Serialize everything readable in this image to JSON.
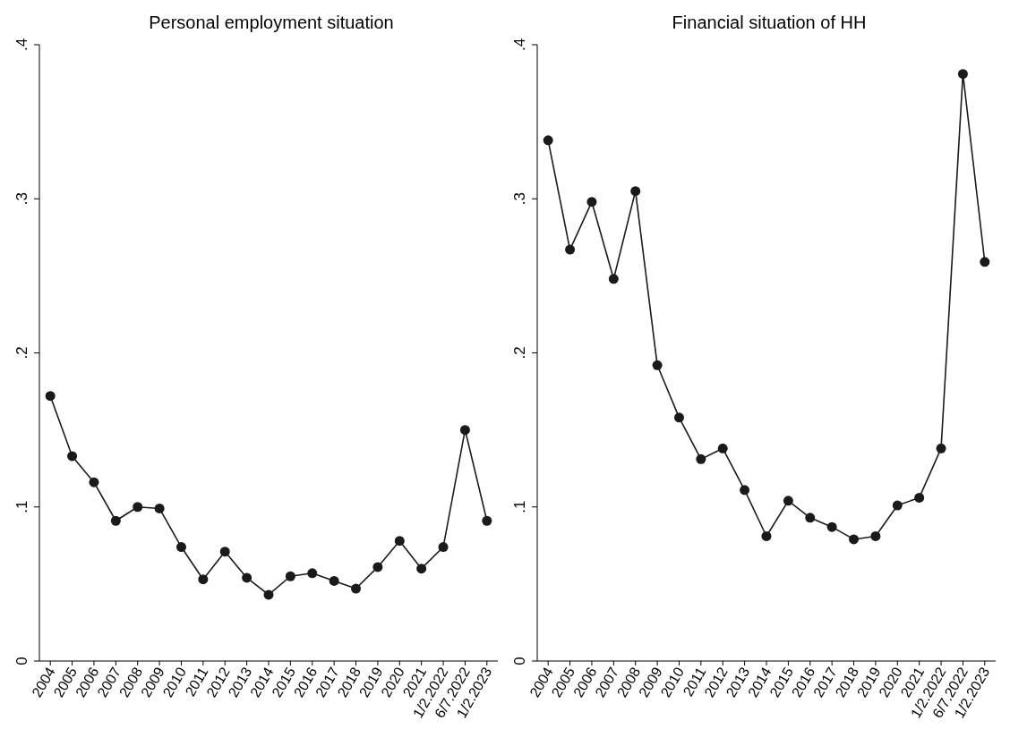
{
  "chart_data": [
    {
      "type": "line",
      "title": "Personal employment situation",
      "categories": [
        "2004",
        "2005",
        "2006",
        "2007",
        "2008",
        "2009",
        "2010",
        "2011",
        "2012",
        "2013",
        "2014",
        "2015",
        "2016",
        "2017",
        "2018",
        "2019",
        "2020",
        "2021",
        "1/2.2022",
        "6/7.2022",
        "1/2.2023"
      ],
      "series": [
        {
          "color": "#1a1a1a",
          "values": [
            0.172,
            0.133,
            0.116,
            0.091,
            0.1,
            0.099,
            0.074,
            0.053,
            0.071,
            0.054,
            0.043,
            0.055,
            0.057,
            0.052,
            0.047,
            0.061,
            0.078,
            0.06,
            0.074,
            0.15,
            0.091
          ]
        }
      ],
      "ylim": [
        0,
        0.4
      ],
      "yticks": [
        {
          "value": 0,
          "label": "0"
        },
        {
          "value": 0.1,
          "label": ".1"
        },
        {
          "value": 0.2,
          "label": ".2"
        },
        {
          "value": 0.3,
          "label": ".3"
        },
        {
          "value": 0.4,
          "label": ".4"
        }
      ],
      "marker": "circle",
      "grid": false,
      "legend": false
    },
    {
      "type": "line",
      "title": "Financial situation of HH",
      "categories": [
        "2004",
        "2005",
        "2006",
        "2007",
        "2008",
        "2009",
        "2010",
        "2011",
        "2012",
        "2013",
        "2014",
        "2015",
        "2016",
        "2017",
        "2018",
        "2019",
        "2020",
        "2021",
        "1/2.2022",
        "6/7.2022",
        "1/2.2023"
      ],
      "series": [
        {
          "color": "#1a1a1a",
          "values": [
            0.338,
            0.267,
            0.298,
            0.248,
            0.305,
            0.192,
            0.158,
            0.131,
            0.138,
            0.111,
            0.081,
            0.104,
            0.093,
            0.087,
            0.079,
            0.081,
            0.101,
            0.106,
            0.138,
            0.381,
            0.259
          ]
        }
      ],
      "ylim": [
        0,
        0.4
      ],
      "yticks": [
        {
          "value": 0,
          "label": "0"
        },
        {
          "value": 0.1,
          "label": ".1"
        },
        {
          "value": 0.2,
          "label": ".2"
        },
        {
          "value": 0.3,
          "label": ".3"
        },
        {
          "value": 0.4,
          "label": ".4"
        }
      ],
      "marker": "circle",
      "grid": false,
      "legend": false
    }
  ]
}
